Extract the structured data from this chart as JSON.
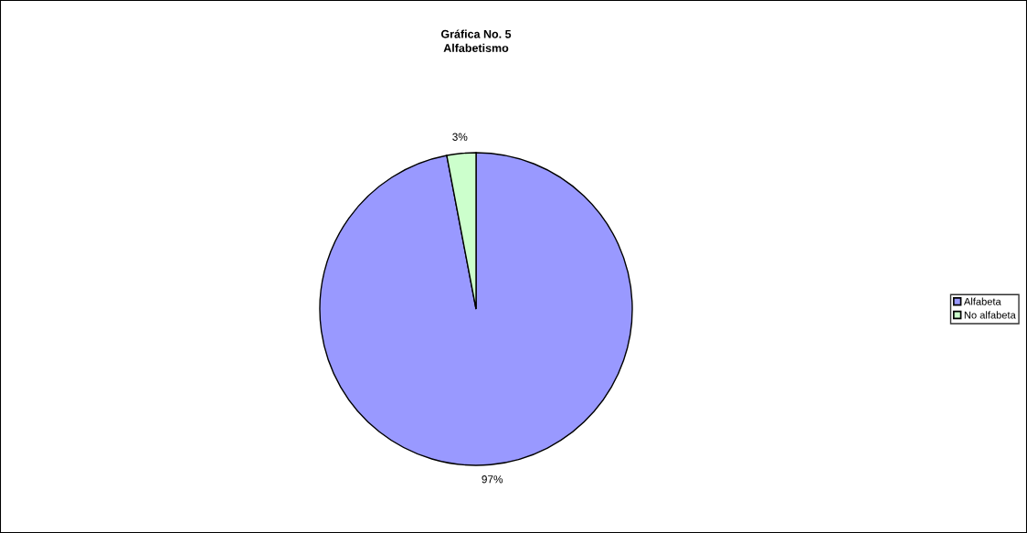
{
  "chart_data": {
    "type": "pie",
    "title": "Gráfica No. 5\nAlfabetismo",
    "categories": [
      "Alfabeta",
      "No alfabeta"
    ],
    "values": [
      97,
      3
    ],
    "colors": [
      "#9999ff",
      "#ccffcc"
    ],
    "value_labels": [
      "97%",
      "3%"
    ],
    "legend": "right"
  }
}
